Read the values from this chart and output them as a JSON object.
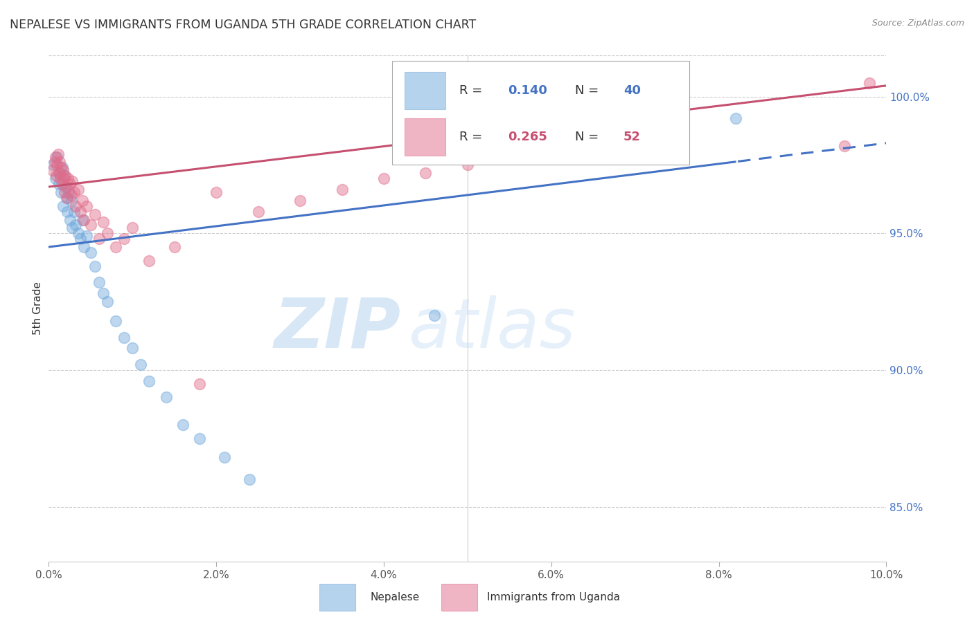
{
  "title": "NEPALESE VS IMMIGRANTS FROM UGANDA 5TH GRADE CORRELATION CHART",
  "source": "Source: ZipAtlas.com",
  "ylabel": "5th Grade",
  "xlim": [
    0.0,
    10.0
  ],
  "ylim": [
    83.0,
    101.5
  ],
  "x_ticks": [
    0.0,
    2.0,
    4.0,
    6.0,
    8.0,
    10.0
  ],
  "x_tick_labels": [
    "0.0%",
    "2.0%",
    "4.0%",
    "6.0%",
    "8.0%",
    "10.0%"
  ],
  "y_ticks": [
    85.0,
    90.0,
    95.0,
    100.0
  ],
  "y_tick_labels": [
    "85.0%",
    "90.0%",
    "95.0%",
    "100.0%"
  ],
  "blue_R": 0.14,
  "blue_N": 40,
  "pink_R": 0.265,
  "pink_N": 52,
  "blue_color": "#6fa8dc",
  "pink_color": "#e06c8a",
  "watermark_zip": "ZIP",
  "watermark_atlas": "atlas",
  "legend_label_blue": "Nepalese",
  "legend_label_pink": "Immigrants from Uganda",
  "blue_scatter_x": [
    0.05,
    0.08,
    0.1,
    0.12,
    0.13,
    0.15,
    0.16,
    0.17,
    0.18,
    0.2,
    0.21,
    0.22,
    0.24,
    0.25,
    0.27,
    0.28,
    0.3,
    0.32,
    0.35,
    0.38,
    0.4,
    0.42,
    0.45,
    0.5,
    0.55,
    0.6,
    0.65,
    0.7,
    0.8,
    0.9,
    1.0,
    1.1,
    1.2,
    1.4,
    1.6,
    1.8,
    2.1,
    2.4,
    4.6,
    8.2
  ],
  "blue_scatter_y": [
    97.5,
    97.0,
    97.8,
    96.8,
    97.2,
    96.5,
    97.4,
    96.0,
    97.1,
    96.7,
    96.3,
    95.8,
    96.5,
    95.5,
    96.2,
    95.2,
    95.8,
    95.3,
    95.0,
    94.8,
    95.5,
    94.5,
    94.9,
    94.3,
    93.8,
    93.2,
    92.8,
    92.5,
    91.8,
    91.2,
    90.8,
    90.2,
    89.6,
    89.0,
    88.0,
    87.5,
    86.8,
    86.0,
    92.0,
    99.2
  ],
  "pink_scatter_x": [
    0.05,
    0.07,
    0.08,
    0.09,
    0.1,
    0.11,
    0.12,
    0.13,
    0.14,
    0.15,
    0.16,
    0.17,
    0.18,
    0.19,
    0.2,
    0.21,
    0.22,
    0.23,
    0.25,
    0.27,
    0.28,
    0.3,
    0.32,
    0.35,
    0.38,
    0.4,
    0.42,
    0.45,
    0.5,
    0.55,
    0.6,
    0.65,
    0.7,
    0.8,
    0.9,
    1.0,
    1.2,
    1.5,
    1.8,
    2.0,
    2.5,
    3.0,
    3.5,
    4.0,
    4.5,
    5.0,
    5.5,
    6.0,
    7.0,
    7.5,
    9.5,
    9.8
  ],
  "pink_scatter_y": [
    97.3,
    97.6,
    97.8,
    97.1,
    97.5,
    97.9,
    97.2,
    97.6,
    97.0,
    97.4,
    96.8,
    97.3,
    97.0,
    96.5,
    97.1,
    96.7,
    96.3,
    97.0,
    96.8,
    96.4,
    96.9,
    96.5,
    96.0,
    96.6,
    95.8,
    96.2,
    95.5,
    96.0,
    95.3,
    95.7,
    94.8,
    95.4,
    95.0,
    94.5,
    94.8,
    95.2,
    94.0,
    94.5,
    89.5,
    96.5,
    95.8,
    96.2,
    96.6,
    97.0,
    97.2,
    97.5,
    97.8,
    98.0,
    98.5,
    99.5,
    98.2,
    100.5
  ]
}
